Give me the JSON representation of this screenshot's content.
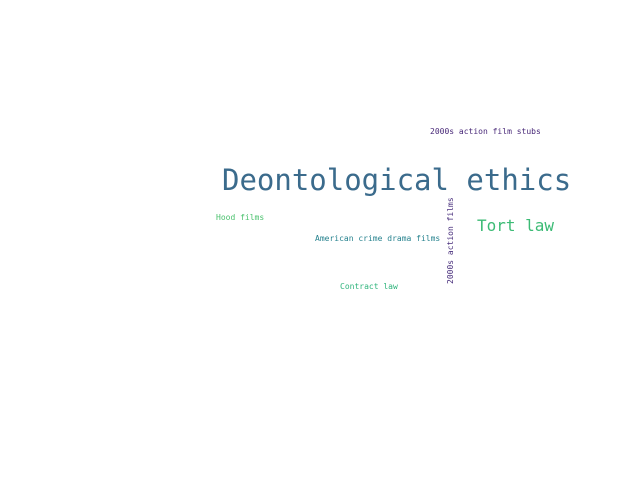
{
  "word_cloud": {
    "words": [
      {
        "text": "Deontological ethics",
        "color": "#3b6b8c"
      },
      {
        "text": "Tort law",
        "color": "#3cbb75"
      },
      {
        "text": "2000s action film stubs",
        "color": "#482878"
      },
      {
        "text": "Hood films",
        "color": "#4ac16d"
      },
      {
        "text": "American crime drama films",
        "color": "#26828e"
      },
      {
        "text": "Contract law",
        "color": "#2fb47c"
      },
      {
        "text": "2000s action films",
        "color": "#472d7b"
      }
    ]
  }
}
